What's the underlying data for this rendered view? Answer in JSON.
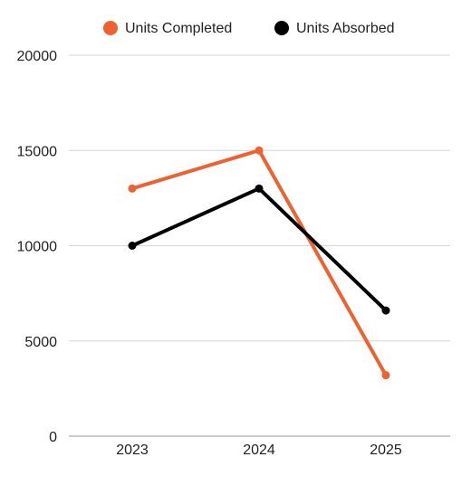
{
  "chart_data": {
    "type": "line",
    "categories": [
      "2023",
      "2024",
      "2025"
    ],
    "series": [
      {
        "name": "Units Completed",
        "values": [
          13000,
          15000,
          3200
        ],
        "color": "#ee6130"
      },
      {
        "name": "Units Absorbed",
        "values": [
          10000,
          13000,
          6600
        ],
        "color": "#000000"
      }
    ],
    "y_ticks": [
      "0",
      "5000",
      "10000",
      "15000",
      "20000"
    ],
    "ylim": [
      0,
      20000
    ],
    "grid": true,
    "legend_position": "top-center",
    "title": "",
    "xlabel": "",
    "ylabel": ""
  }
}
